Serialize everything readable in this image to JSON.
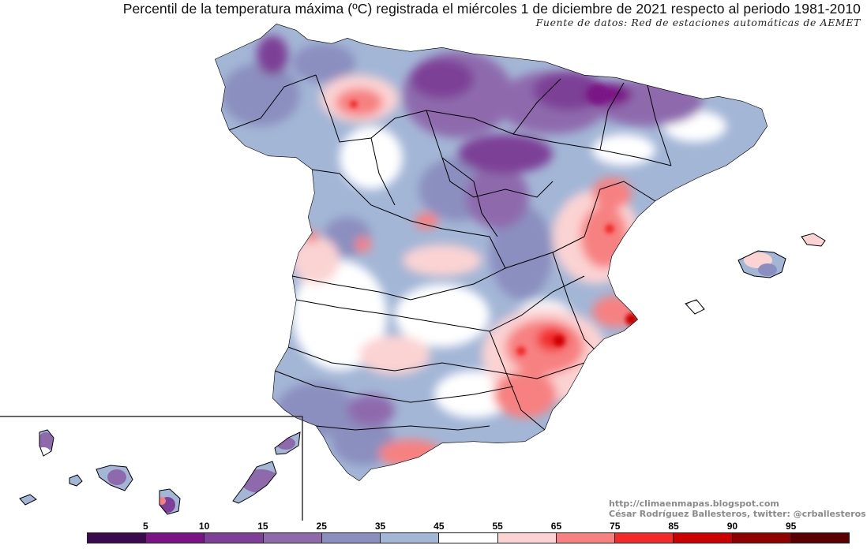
{
  "title": "Percentil de la temperatura máxima (ºC) registrada el miércoles 1 de diciembre de 2021 respecto al periodo 1981-2010",
  "source": "Fuente de datos: Red de estaciones automáticas de AEMET",
  "credits": {
    "url": "http://climaenmapas.blogspot.com",
    "author": "César Rodríguez Ballesteros, twitter: @crballesteros"
  },
  "legend": {
    "colors": [
      "#3a0a4e",
      "#7a1486",
      "#7d3f97",
      "#8e6aad",
      "#8b8fbf",
      "#a3b6d6",
      "#ffffff",
      "#fbd3d3",
      "#f78181",
      "#f22a2a",
      "#cc0000",
      "#8f0000",
      "#5a0000"
    ],
    "labels": [
      "5",
      "10",
      "15",
      "25",
      "35",
      "45",
      "55",
      "65",
      "75",
      "85",
      "90",
      "95"
    ]
  },
  "colors": {
    "p35": "#8b8fbf",
    "p45": "#a3b6d6",
    "p25": "#8e6aad",
    "p15": "#7d3f97",
    "p10": "#7a1486",
    "p65": "#fbd3d3",
    "p75": "#f78181",
    "p85": "#f22a2a",
    "p90": "#cc0000"
  }
}
